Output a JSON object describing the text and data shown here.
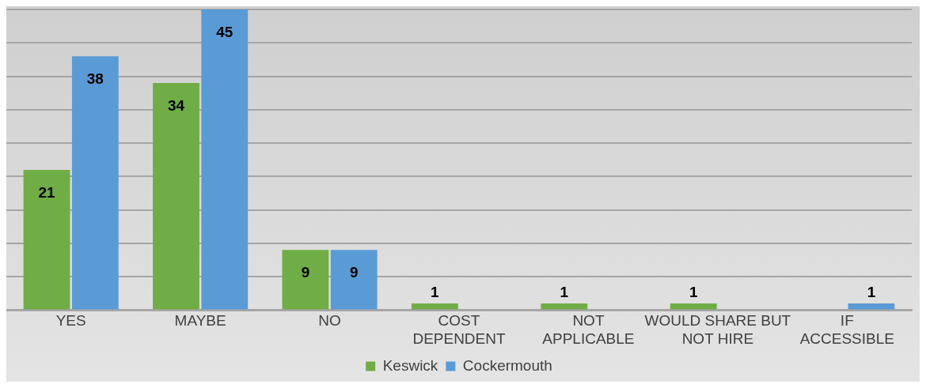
{
  "chart_data": {
    "type": "bar",
    "categories": [
      "YES",
      "MAYBE",
      "NO",
      "COST DEPENDENT",
      "NOT APPLICABLE",
      "WOULD SHARE BUT NOT HIRE",
      "IF ACCESSIBLE"
    ],
    "series": [
      {
        "name": "Keswick",
        "color": "#70ad47",
        "values": [
          21,
          34,
          9,
          1,
          1,
          1,
          null
        ]
      },
      {
        "name": "Cockermouth",
        "color": "#5b9bd5",
        "values": [
          38,
          45,
          9,
          null,
          null,
          null,
          1
        ]
      }
    ],
    "tick_labels": "x",
    "grid": "y",
    "legend": "bottom",
    "data_labels": true
  }
}
